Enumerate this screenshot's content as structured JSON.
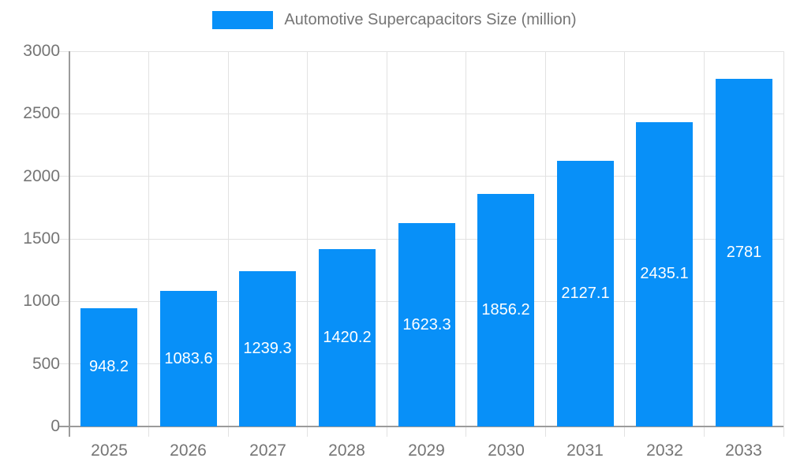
{
  "chart_data": {
    "type": "bar",
    "title": "",
    "categories": [
      "2025",
      "2026",
      "2027",
      "2028",
      "2029",
      "2030",
      "2031",
      "2032",
      "2033"
    ],
    "series": [
      {
        "name": "Automotive Supercapacitors Size (million)",
        "values": [
          948.2,
          1083.6,
          1239.3,
          1420.2,
          1623.3,
          1856.2,
          2127.1,
          2435.1,
          2781
        ]
      }
    ],
    "value_labels": [
      "948.2",
      "1083.6",
      "1239.3",
      "1420.2",
      "1623.3",
      "1856.2",
      "2127.1",
      "2435.1",
      "2781"
    ],
    "xlabel": "",
    "ylabel": "",
    "ylim": [
      0,
      3000
    ],
    "yticks": [
      0,
      500,
      1000,
      1500,
      2000,
      2500,
      3000
    ],
    "grid": true,
    "legend_position": "top-center"
  },
  "colors": {
    "bar": "#0890F8",
    "grid": "#E2E2E2",
    "axis": "#9B9B9B",
    "text": "#757575",
    "value_label": "#FFFFFF",
    "background": "#FFFFFF"
  }
}
